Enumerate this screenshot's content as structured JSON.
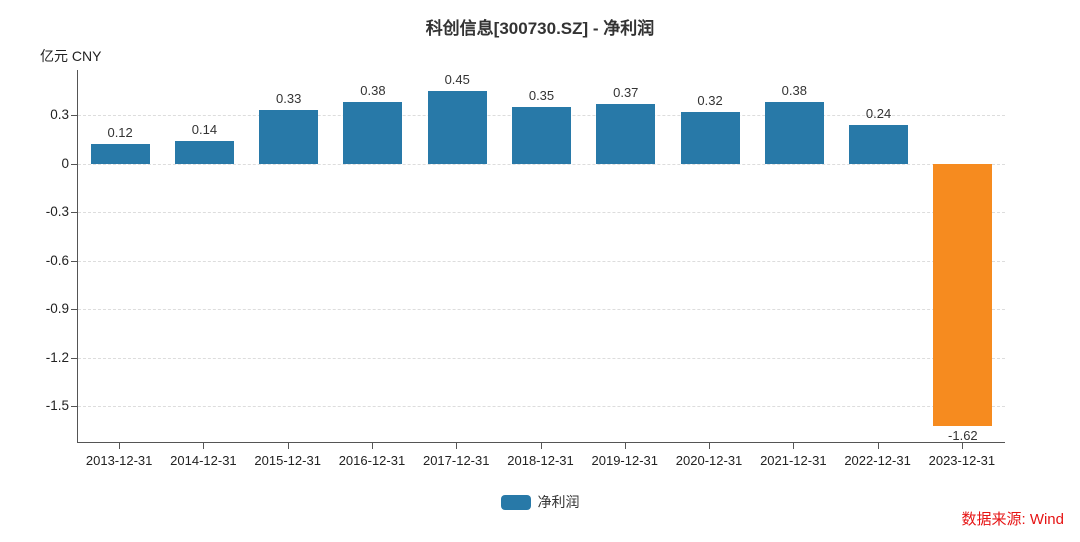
{
  "title": "科创信息[300730.SZ] - 净利润",
  "y_unit_label": "亿元 CNY",
  "source_note": "数据来源: Wind",
  "legend": [
    {
      "label": "净利润",
      "color": "#2879a8"
    }
  ],
  "colors": {
    "positive_bar": "#2879a8",
    "negative_bar": "#f68b1f",
    "gridline": "#dddddd",
    "axis": "#555555",
    "text": "#333333",
    "source_note": "#e61414"
  },
  "chart_data": {
    "type": "bar",
    "title": "科创信息[300730.SZ] - 净利润",
    "ylabel": "亿元 CNY",
    "xlabel": "",
    "categories": [
      "2013-12-31",
      "2014-12-31",
      "2015-12-31",
      "2016-12-31",
      "2017-12-31",
      "2018-12-31",
      "2019-12-31",
      "2020-12-31",
      "2021-12-31",
      "2022-12-31",
      "2023-12-31"
    ],
    "series": [
      {
        "name": "净利润",
        "values": [
          0.12,
          0.14,
          0.33,
          0.38,
          0.45,
          0.35,
          0.37,
          0.32,
          0.38,
          0.24,
          -1.62
        ]
      }
    ],
    "yticks": [
      0.3,
      0,
      -0.3,
      -0.6,
      -0.9,
      -1.2,
      -1.5
    ],
    "ylim": [
      -1.72,
      0.58
    ],
    "grid": "horizontal-dashed",
    "legend_position": "bottom-center",
    "value_labels": "shown, 2 decimals"
  }
}
